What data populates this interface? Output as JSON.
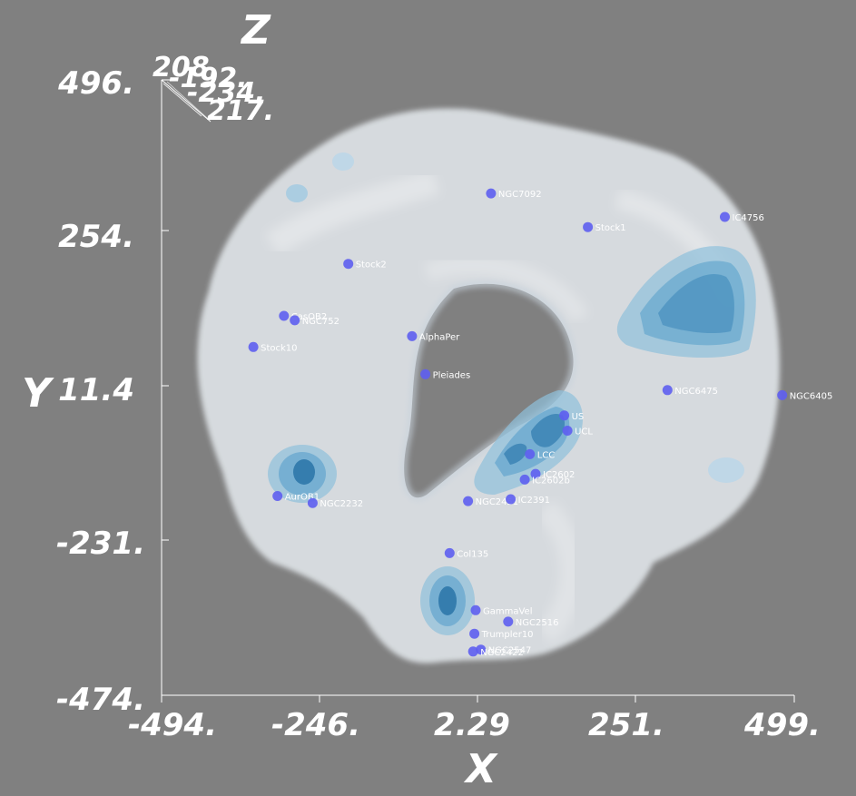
{
  "chart_data": {
    "type": "scatter",
    "x_axis": {
      "label": "X",
      "range": [
        -494,
        499
      ],
      "ticks": [
        "-494.",
        "-246.",
        "2.29",
        "251.",
        "499."
      ]
    },
    "y_axis": {
      "label": "Y",
      "range": [
        -474,
        496
      ],
      "ticks": [
        "-474.",
        "-231.",
        "11.4",
        "254.",
        "496."
      ]
    },
    "z_axis": {
      "label": "Z",
      "ticks": [
        "208.",
        "-192.",
        "-234.",
        "217."
      ]
    },
    "points": [
      {
        "label": "NGC7092",
        "x": 23,
        "y": 317
      },
      {
        "label": "Stock1",
        "x": 175,
        "y": 264
      },
      {
        "label": "IC4756",
        "x": 390,
        "y": 280
      },
      {
        "label": "Stock2",
        "x": -201,
        "y": 206
      },
      {
        "label": "NGC6475",
        "x": 300,
        "y": 7
      },
      {
        "label": "NGC6405",
        "x": 480,
        "y": -1
      },
      {
        "label": "AlphaPer",
        "x": -101,
        "y": 92
      },
      {
        "label": "Pleiades",
        "x": -80,
        "y": 32
      },
      {
        "label": "Stock10",
        "x": -350,
        "y": 75
      },
      {
        "label": "CasOB2",
        "x": -302,
        "y": 124
      },
      {
        "label": "NGC752",
        "x": -285,
        "y": 117
      },
      {
        "label": "AurOB1",
        "x": -312,
        "y": -160
      },
      {
        "label": "NGC2232",
        "x": -257,
        "y": -171
      },
      {
        "label": "Col135",
        "x": -42,
        "y": -250
      },
      {
        "label": "NGC2451",
        "x": -13,
        "y": -168
      },
      {
        "label": "IC2391",
        "x": 54,
        "y": -165
      },
      {
        "label": "IC2602",
        "x": 93,
        "y": -125
      },
      {
        "label": "IC2602b",
        "x": 76,
        "y": -134
      },
      {
        "label": "LCC",
        "x": 84,
        "y": -94
      },
      {
        "label": "US",
        "x": 138,
        "y": -33
      },
      {
        "label": "UCL",
        "x": 143,
        "y": -57
      },
      {
        "label": "GammaVel",
        "x": -1,
        "y": -340
      },
      {
        "label": "NGC2516",
        "x": 50,
        "y": -358
      },
      {
        "label": "Trumpler10",
        "x": -3,
        "y": -377
      },
      {
        "label": "NGC2547",
        "x": 7,
        "y": -402
      },
      {
        "label": "NGC2422",
        "x": -5,
        "y": -405
      }
    ],
    "grid": false,
    "legend": "none"
  }
}
